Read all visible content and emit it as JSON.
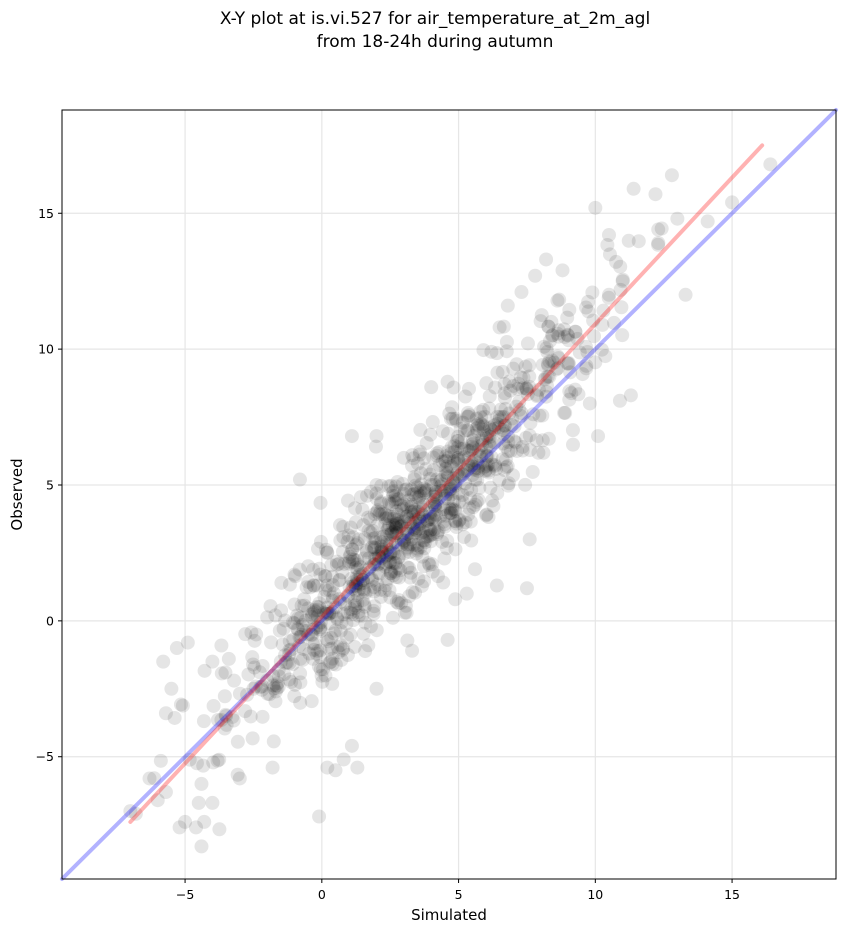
{
  "chart_data": {
    "type": "scatter",
    "title": [
      "X-Y plot at is.vi.527 for air_temperature_at_2m_agl",
      "from 18-24h during autumn"
    ],
    "xlabel": "Simulated",
    "ylabel": "Observed",
    "xlim": [
      -9.5,
      18.8
    ],
    "ylim": [
      -9.5,
      18.8
    ],
    "xticks": [
      -5,
      0,
      5,
      10,
      15
    ],
    "yticks": [
      -5,
      0,
      5,
      10,
      15
    ],
    "xtick_labels": [
      "−5",
      "0",
      "5",
      "10",
      "15"
    ],
    "ytick_labels": [
      "−5",
      "0",
      "5",
      "10",
      "15"
    ],
    "grid": true,
    "points_color": "#000000",
    "points_alpha": 0.1,
    "approx_point_count": 1100,
    "series": [
      {
        "role": "one-to-one line",
        "color": "#0000ff",
        "alpha": 0.3,
        "x": [
          -9.5,
          18.8
        ],
        "y": [
          -9.5,
          18.8
        ]
      },
      {
        "role": "regression fit",
        "color": "#ff0000",
        "alpha": 0.3,
        "x": [
          -7.0,
          16.1
        ],
        "y": [
          -7.4,
          17.5
        ]
      }
    ],
    "sample_points": [
      [
        -4.4,
        -8.3
      ],
      [
        -0.1,
        -7.2
      ],
      [
        -5.0,
        -7.4
      ],
      [
        -5.2,
        -7.6
      ],
      [
        -4.6,
        -7.6
      ],
      [
        -4.3,
        -7.4
      ],
      [
        -7.0,
        -7.0
      ],
      [
        -6.8,
        -7.1
      ],
      [
        -6.0,
        -6.6
      ],
      [
        -5.7,
        -6.3
      ],
      [
        -4.5,
        -6.7
      ],
      [
        -4.0,
        -6.7
      ],
      [
        -6.3,
        -5.8
      ],
      [
        -4.4,
        -6.0
      ],
      [
        -3.0,
        -5.8
      ],
      [
        -1.8,
        -5.4
      ],
      [
        0.2,
        -5.4
      ],
      [
        0.5,
        -5.5
      ],
      [
        1.3,
        -5.4
      ],
      [
        -5.8,
        -1.5
      ],
      [
        -5.7,
        -3.4
      ],
      [
        -5.5,
        -2.5
      ],
      [
        -5.3,
        -1.0
      ],
      [
        -4.9,
        -0.8
      ],
      [
        -4.0,
        -1.5
      ],
      [
        -3.4,
        -1.4
      ],
      [
        -2.4,
        -0.5
      ],
      [
        -1.7,
        0.2
      ],
      [
        -1.0,
        0.6
      ],
      [
        -0.8,
        5.2
      ],
      [
        1.1,
        6.8
      ],
      [
        2.0,
        6.8
      ],
      [
        4.0,
        8.6
      ],
      [
        4.6,
        8.8
      ],
      [
        6.2,
        9.9
      ],
      [
        6.5,
        10.8
      ],
      [
        6.8,
        11.6
      ],
      [
        7.3,
        12.1
      ],
      [
        7.8,
        12.7
      ],
      [
        8.2,
        13.3
      ],
      [
        8.8,
        12.9
      ],
      [
        10.0,
        15.2
      ],
      [
        10.5,
        14.2
      ],
      [
        11.4,
        15.9
      ],
      [
        12.2,
        15.7
      ],
      [
        12.8,
        16.4
      ],
      [
        12.3,
        14.4
      ],
      [
        13.0,
        14.8
      ],
      [
        15.0,
        15.4
      ],
      [
        16.4,
        16.8
      ],
      [
        13.3,
        12.0
      ],
      [
        11.3,
        8.3
      ],
      [
        10.9,
        8.1
      ],
      [
        9.8,
        8.0
      ],
      [
        10.1,
        6.8
      ],
      [
        8.3,
        6.7
      ],
      [
        7.6,
        3.0
      ],
      [
        7.5,
        1.2
      ],
      [
        5.3,
        1.0
      ],
      [
        4.6,
        -0.7
      ],
      [
        3.3,
        -1.1
      ],
      [
        2.0,
        -2.5
      ],
      [
        1.1,
        -4.6
      ],
      [
        0.8,
        -5.1
      ],
      [
        6.4,
        1.3
      ],
      [
        5.6,
        1.9
      ],
      [
        3.1,
        0.3
      ],
      [
        1.7,
        -0.9
      ],
      [
        0.2,
        2.5
      ],
      [
        -1.0,
        1.7
      ],
      [
        2.0,
        5.0
      ],
      [
        3.0,
        6.0
      ],
      [
        4.0,
        5.0
      ],
      [
        5.0,
        6.0
      ],
      [
        5.5,
        6.5
      ],
      [
        6.5,
        7.5
      ],
      [
        7.5,
        8.5
      ],
      [
        8.5,
        9.5
      ],
      [
        9.0,
        10.5
      ],
      [
        10.5,
        12.0
      ],
      [
        11.0,
        12.5
      ],
      [
        3.5,
        3.5
      ],
      [
        2.5,
        2.5
      ],
      [
        1.5,
        1.5
      ],
      [
        0.5,
        0.5
      ],
      [
        -0.5,
        -0.5
      ],
      [
        -1.5,
        -1.5
      ],
      [
        -2.5,
        -2.5
      ],
      [
        -3.5,
        -3.5
      ],
      [
        4.5,
        4.5
      ]
    ]
  }
}
